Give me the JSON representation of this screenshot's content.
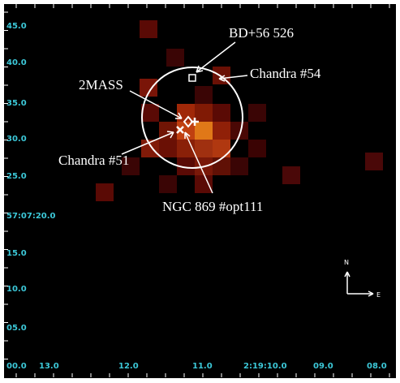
{
  "axes": {
    "y_labels": [
      "45.0",
      "40.0",
      "35.0",
      "30.0",
      "25.0",
      "57:07:20.0",
      "15.0",
      "10.0",
      "05.0",
      "00.0"
    ],
    "x_labels": [
      "13.0",
      "12.0",
      "11.0",
      "2:19:10.0",
      "09.0",
      "08.0"
    ]
  },
  "annotations": {
    "bd": "BD+56 526",
    "chandra54": "Chandra #54",
    "twomass": "2MASS",
    "chandra51": "Chandra #51",
    "ngc": "NGC 869 #opt111"
  },
  "compass": {
    "north": "N",
    "east": "E"
  }
}
